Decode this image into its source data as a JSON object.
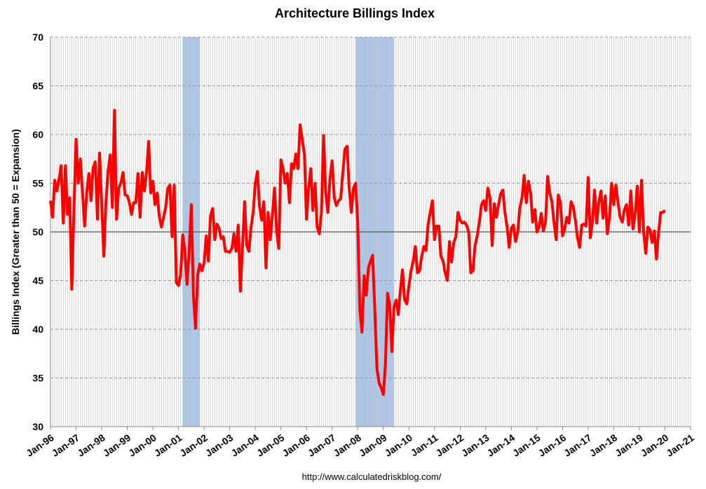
{
  "chart_data": {
    "type": "line",
    "title": "Architecture Billings Index",
    "y_label": "Billings Index (Greater than 50 = Expansion)",
    "source": "http://www.calculatedriskblog.com/",
    "categories": [
      "Jan-96",
      null,
      null,
      null,
      null,
      null,
      null,
      null,
      null,
      null,
      null,
      null,
      "Jan-97",
      null,
      null,
      null,
      null,
      null,
      null,
      null,
      null,
      null,
      null,
      null,
      "Jan-98",
      null,
      null,
      null,
      null,
      null,
      null,
      null,
      null,
      null,
      null,
      null,
      "Jan-99",
      null,
      null,
      null,
      null,
      null,
      null,
      null,
      null,
      null,
      null,
      null,
      "Jan-00",
      null,
      null,
      null,
      null,
      null,
      null,
      null,
      null,
      null,
      null,
      null,
      "Jan-01",
      null,
      null,
      null,
      null,
      null,
      null,
      null,
      null,
      null,
      null,
      null,
      "Jan-02",
      null,
      null,
      null,
      null,
      null,
      null,
      null,
      null,
      null,
      null,
      null,
      "Jan-03",
      null,
      null,
      null,
      null,
      null,
      null,
      null,
      null,
      null,
      null,
      null,
      "Jan-04",
      null,
      null,
      null,
      null,
      null,
      null,
      null,
      null,
      null,
      null,
      null,
      "Jan-05",
      null,
      null,
      null,
      null,
      null,
      null,
      null,
      null,
      null,
      null,
      null,
      "Jan-06",
      null,
      null,
      null,
      null,
      null,
      null,
      null,
      null,
      null,
      null,
      null,
      "Jan-07",
      null,
      null,
      null,
      null,
      null,
      null,
      null,
      null,
      null,
      null,
      null,
      "Jan-08",
      null,
      null,
      null,
      null,
      null,
      null,
      null,
      null,
      null,
      null,
      null,
      "Jan-09",
      null,
      null,
      null,
      null,
      null,
      null,
      null,
      null,
      null,
      null,
      null,
      "Jan-10",
      null,
      null,
      null,
      null,
      null,
      null,
      null,
      null,
      null,
      null,
      null,
      "Jan-11",
      null,
      null,
      null,
      null,
      null,
      null,
      null,
      null,
      null,
      null,
      null,
      "Jan-12",
      null,
      null,
      null,
      null,
      null,
      null,
      null,
      null,
      null,
      null,
      null,
      "Jan-13",
      null,
      null,
      null,
      null,
      null,
      null,
      null,
      null,
      null,
      null,
      null,
      "Jan-14",
      null,
      null,
      null,
      null,
      null,
      null,
      null,
      null,
      null,
      null,
      null,
      "Jan-15",
      null,
      null,
      null,
      null,
      null,
      null,
      null,
      null,
      null,
      null,
      null,
      "Jan-16",
      null,
      null,
      null,
      null,
      null,
      null,
      null,
      null,
      null,
      null,
      null,
      "Jan-17",
      null,
      null,
      null,
      null,
      null,
      null,
      null,
      null,
      null,
      null,
      null,
      "Jan-18",
      null,
      null,
      null,
      null,
      null,
      null,
      null,
      null,
      null,
      null,
      null,
      "Jan-19",
      null,
      null,
      null,
      null,
      null,
      null,
      null,
      null,
      null,
      null,
      null,
      "Jan-20",
      null,
      null,
      null,
      null,
      null,
      null,
      null,
      null,
      null,
      null,
      null,
      "Jan-21"
    ],
    "series": [
      {
        "name": "Architecture Billings Index",
        "color": "#ff0000",
        "values": [
          53.2,
          51.5,
          55.3,
          54.2,
          55.4,
          56.8,
          50.9,
          56.8,
          51.8,
          53.5,
          44.1,
          52.5,
          59.5,
          55.0,
          57.5,
          54.0,
          50.6,
          54.0,
          56.0,
          53.2,
          56.6,
          57.2,
          51.3,
          58.1,
          53.0,
          47.5,
          53.0,
          56.3,
          57.9,
          52.5,
          62.5,
          51.3,
          54.5,
          55.0,
          56.1,
          53.8,
          53.7,
          53.0,
          51.8,
          53.0,
          53.0,
          56.0,
          51.5,
          56.1,
          54.2,
          56.0,
          59.3,
          54.0,
          55.2,
          52.8,
          54.0,
          51.6,
          50.5,
          51.5,
          52.5,
          54.5,
          54.8,
          49.5,
          54.8,
          44.8,
          44.5,
          45.6,
          49.7,
          48.0,
          44.6,
          48.0,
          52.8,
          43.5,
          40.1,
          45.6,
          46.7,
          46.0,
          46.8,
          49.6,
          47.0,
          51.7,
          52.4,
          49.2,
          50.8,
          50.4,
          49.3,
          49.5,
          48.0,
          48.0,
          47.9,
          48.3,
          49.8,
          48.0,
          50.7,
          43.9,
          48.5,
          53.1,
          48.6,
          48.0,
          50.5,
          52.0,
          55.0,
          56.2,
          52.6,
          51.2,
          53.1,
          46.3,
          52.0,
          49.2,
          51.7,
          54.5,
          50.0,
          48.3,
          57.4,
          56.5,
          55.0,
          56.0,
          53.0,
          57.0,
          56.5,
          58.0,
          56.5,
          61.0,
          59.5,
          58.0,
          51.3,
          54.5,
          56.5,
          52.2,
          55.0,
          50.5,
          49.8,
          52.0,
          59.9,
          54.0,
          52.0,
          55.5,
          57.3,
          53.5,
          52.7,
          53.2,
          53.4,
          56.0,
          58.5,
          58.8,
          54.5,
          52.0,
          54.5,
          55.0,
          51.0,
          42.0,
          39.7,
          45.5,
          43.5,
          46.3,
          47.0,
          47.6,
          42.0,
          36.0,
          34.5,
          34.0,
          33.3,
          36.5,
          43.7,
          42.5,
          37.7,
          42.3,
          43.0,
          41.5,
          44.0,
          46.1,
          43.0,
          42.6,
          44.5,
          46.0,
          47.0,
          48.5,
          45.8,
          46.0,
          47.5,
          48.5,
          48.1,
          50.8,
          52.0,
          53.2,
          49.2,
          50.6,
          50.6,
          47.5,
          47.0,
          45.8,
          45.0,
          49.0,
          46.9,
          48.9,
          49.5,
          52.0,
          51.2,
          50.9,
          51.0,
          50.7,
          50.0,
          45.8,
          46.0,
          48.6,
          49.6,
          51.0,
          52.8,
          53.2,
          52.2,
          54.5,
          53.5,
          48.6,
          52.9,
          51.5,
          52.8,
          53.9,
          54.3,
          52.0,
          50.5,
          48.4,
          50.4,
          50.7,
          49.0,
          50.0,
          52.5,
          53.5,
          55.8,
          53.0,
          55.2,
          54.0,
          51.0,
          52.3,
          50.0,
          50.5,
          51.9,
          50.1,
          51.0,
          55.7,
          54.0,
          53.1,
          51.0,
          49.2,
          53.8,
          53.0,
          49.6,
          50.3,
          51.5,
          50.9,
          53.1,
          52.6,
          51.2,
          49.4,
          48.4,
          50.7,
          50.8,
          50.6,
          55.6,
          49.4,
          51.0,
          54.3,
          50.9,
          53.0,
          54.2,
          51.4,
          53.7,
          49.8,
          51.5,
          55.0,
          52.8,
          54.8,
          53.0,
          51.5,
          51.0,
          52.3,
          52.8,
          50.7,
          54.2,
          50.3,
          51.8,
          54.7,
          50.0,
          55.3,
          50.0,
          47.8,
          50.5,
          50.2,
          48.9,
          50.1,
          47.2,
          50.0,
          52.0,
          52.0,
          52.2,
          null,
          null,
          null,
          null,
          null,
          null,
          null,
          null,
          null,
          null,
          null,
          null
        ]
      }
    ],
    "shaded_periods": [
      [
        62,
        70
      ],
      [
        143,
        161
      ]
    ],
    "shade_color": "#a6c4ec",
    "reference_line": 50,
    "ylim": [
      30,
      70
    ],
    "yticks": [
      30,
      35,
      40,
      45,
      50,
      55,
      60,
      65,
      70
    ],
    "grid": true
  }
}
